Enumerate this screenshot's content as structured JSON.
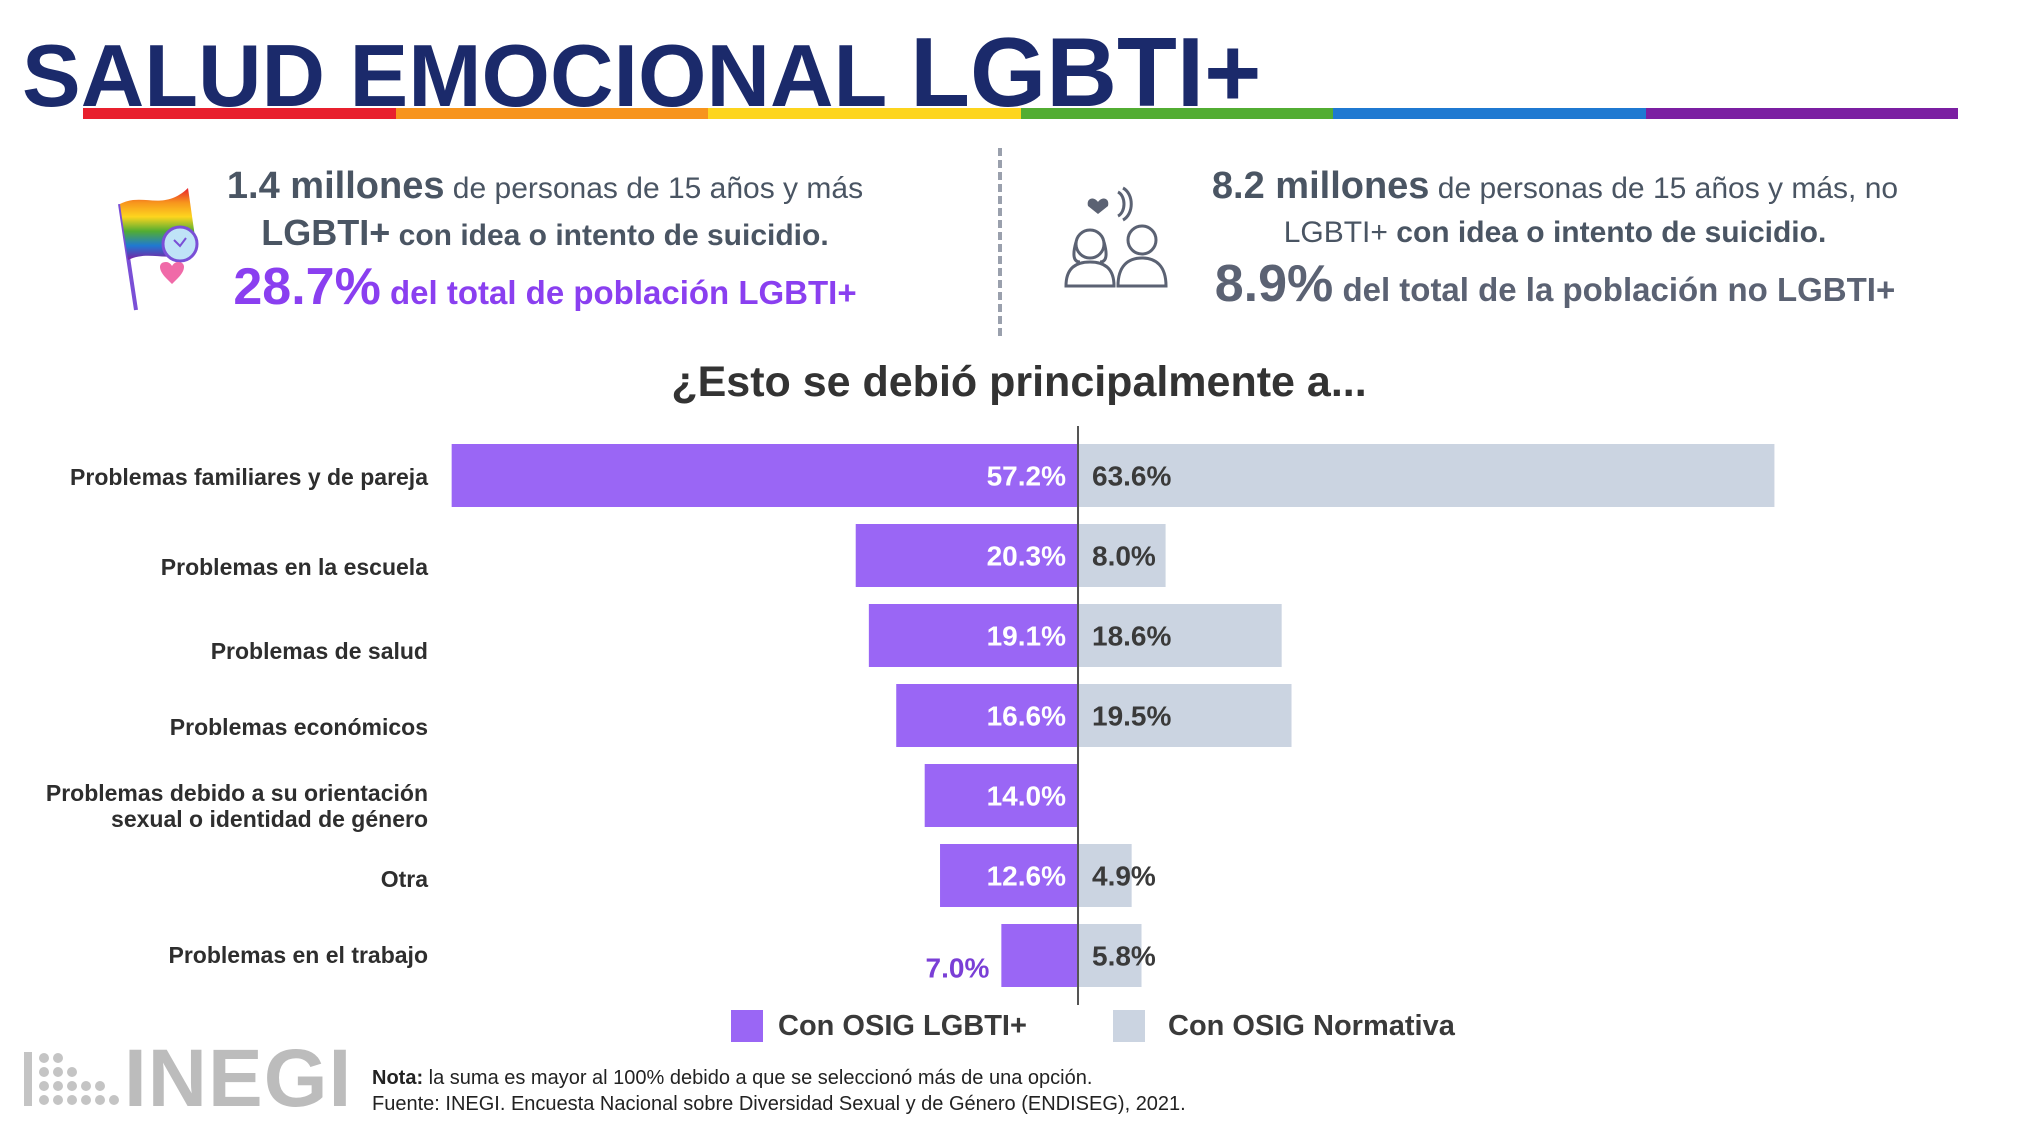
{
  "header": {
    "title_part1": "SALUD EMOCIONAL ",
    "title_part2": "LGBTI+",
    "rainbow_colors": [
      "#e8202e",
      "#f7941d",
      "#fdd51e",
      "#52ad32",
      "#1f79d1",
      "#7b1fa2"
    ]
  },
  "stats": {
    "left": {
      "icon": "pride-flag-icon",
      "count": "1.4 millones",
      "line1_rest": " de personas de 15 años y más",
      "line2_bold": "LGBTI+",
      "line2_rest": " con idea o intento de suicidio.",
      "pct": "28.7%",
      "pct_tail": " del total de población LGBTI+",
      "color": "#8a3ff0"
    },
    "right": {
      "icon": "people-listening-icon",
      "count": "8.2 millones",
      "line1_rest": " de personas de 15 años y más, no",
      "line2_plain": "LGBTI+",
      "line2_bold": " con idea o intento de suicidio.",
      "pct": "8.9%",
      "pct_tail": " del total de la población no LGBTI+",
      "color": "#5b6273"
    }
  },
  "question": "¿Esto se debió principalmente a...",
  "chart_data": {
    "type": "bar",
    "orientation": "horizontal-diverging",
    "categories": [
      "Problemas familiares y de pareja",
      "Problemas en la escuela",
      "Problemas de salud",
      "Problemas económicos",
      "Problemas debido a su orientación sexual o identidad de género",
      "Otra",
      "Problemas en el trabajo"
    ],
    "series": [
      {
        "name": "Con OSIG LGBTI+",
        "color": "#9a66f5",
        "values": [
          57.2,
          20.3,
          19.1,
          16.6,
          14.0,
          12.6,
          7.0
        ],
        "labels": [
          "57.2%",
          "20.3%",
          "19.1%",
          "16.6%",
          "14.0%",
          "12.6%",
          "7.0%"
        ]
      },
      {
        "name": "Con OSIG Normativa",
        "color": "#cbd4e1",
        "values": [
          63.6,
          8.0,
          18.6,
          19.5,
          null,
          4.9,
          5.8
        ],
        "labels": [
          "63.6%",
          "8.0%",
          "18.6%",
          "19.5%",
          "",
          "4.9%",
          "5.8%"
        ]
      }
    ],
    "legend_position": "bottom",
    "grid": false
  },
  "footer": {
    "note_label": "Nota:",
    "note_text": "  la suma es mayor al 100% debido a que se seleccionó más de una opción.",
    "source_label": "Fuente:",
    "source_text": "  INEGI. Encuesta Nacional sobre Diversidad Sexual y de Género (ENDISEG), 2021.",
    "logo_text": "INEGI"
  }
}
